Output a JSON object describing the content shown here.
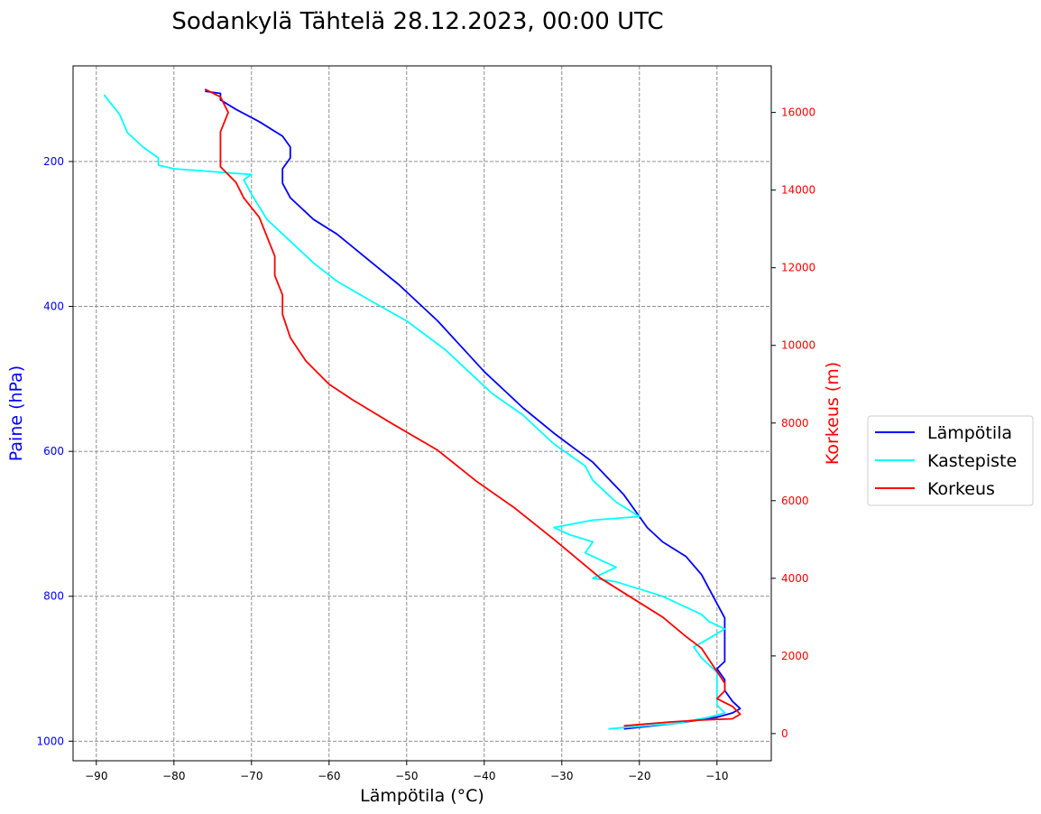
{
  "chart_data": {
    "type": "line",
    "title": "Sodankylä Tähtelä 28.12.2023, 00:00 UTC",
    "xlabel": "Lämpötila (°C)",
    "ylabel_left": "Paine (hPa)",
    "ylabel_right": "Korkeus (m)",
    "xlim": [
      -93,
      -3
    ],
    "ylim_left": [
      1027,
      68
    ],
    "ylim_right": [
      -700,
      17200
    ],
    "x_ticks": [
      "−90",
      "−80",
      "−70",
      "−60",
      "−50",
      "−40",
      "−30",
      "−20",
      "−10"
    ],
    "left_ticks": [
      "200",
      "400",
      "600",
      "800",
      "1000"
    ],
    "right_ticks": [
      "0",
      "2000",
      "4000",
      "6000",
      "8000",
      "10000",
      "12000",
      "14000",
      "16000"
    ],
    "grid": true,
    "legend_position": "outside-right",
    "colors": {
      "temperature": "#0000ff",
      "dewpoint": "#00ffff",
      "height": "#ff0000",
      "left_axis": "#0000ff",
      "right_axis": "#ff0000"
    },
    "series": [
      {
        "name": "Lämpötila",
        "axis": "pressure",
        "points": [
          [
            -22,
            983
          ],
          [
            -15,
            975
          ],
          [
            -10,
            967
          ],
          [
            -8,
            961
          ],
          [
            -7,
            955
          ],
          [
            -8,
            945
          ],
          [
            -9,
            930
          ],
          [
            -9,
            915
          ],
          [
            -10,
            900
          ],
          [
            -9,
            890
          ],
          [
            -9,
            875
          ],
          [
            -9,
            850
          ],
          [
            -9,
            830
          ],
          [
            -10,
            810
          ],
          [
            -11,
            790
          ],
          [
            -12,
            770
          ],
          [
            -14,
            745
          ],
          [
            -17,
            725
          ],
          [
            -19,
            705
          ],
          [
            -20,
            690
          ],
          [
            -22,
            660
          ],
          [
            -26,
            615
          ],
          [
            -31,
            575
          ],
          [
            -35,
            540
          ],
          [
            -37,
            520
          ],
          [
            -40,
            490
          ],
          [
            -43,
            455
          ],
          [
            -46,
            420
          ],
          [
            -51,
            370
          ],
          [
            -55,
            335
          ],
          [
            -59,
            300
          ],
          [
            -62,
            280
          ],
          [
            -65,
            250
          ],
          [
            -66,
            230
          ],
          [
            -66,
            210
          ],
          [
            -65,
            195
          ],
          [
            -65,
            180
          ],
          [
            -66,
            165
          ],
          [
            -69,
            145
          ],
          [
            -72,
            128
          ],
          [
            -74,
            115
          ],
          [
            -74,
            106
          ],
          [
            -76,
            103
          ]
        ]
      },
      {
        "name": "Kastepiste",
        "axis": "pressure",
        "points": [
          [
            -24,
            983
          ],
          [
            -15,
            975
          ],
          [
            -11,
            967
          ],
          [
            -9,
            961
          ],
          [
            -10,
            950
          ],
          [
            -10,
            935
          ],
          [
            -10,
            920
          ],
          [
            -10,
            905
          ],
          [
            -11,
            895
          ],
          [
            -12,
            885
          ],
          [
            -13,
            870
          ],
          [
            -11,
            858
          ],
          [
            -9,
            845
          ],
          [
            -11,
            835
          ],
          [
            -12,
            825
          ],
          [
            -14,
            815
          ],
          [
            -16,
            805
          ],
          [
            -17,
            800
          ],
          [
            -20,
            790
          ],
          [
            -23,
            780
          ],
          [
            -26,
            775
          ],
          [
            -23,
            760
          ],
          [
            -27,
            740
          ],
          [
            -26,
            725
          ],
          [
            -29,
            715
          ],
          [
            -31,
            705
          ],
          [
            -26,
            695
          ],
          [
            -20,
            690
          ],
          [
            -23,
            670
          ],
          [
            -26,
            640
          ],
          [
            -27,
            620
          ],
          [
            -31,
            590
          ],
          [
            -33,
            570
          ],
          [
            -35,
            550
          ],
          [
            -39,
            520
          ],
          [
            -42,
            490
          ],
          [
            -45,
            460
          ],
          [
            -50,
            420
          ],
          [
            -55,
            390
          ],
          [
            -59,
            365
          ],
          [
            -62,
            340
          ],
          [
            -65,
            310
          ],
          [
            -68,
            280
          ],
          [
            -70,
            245
          ],
          [
            -71,
            225
          ],
          [
            -70,
            218
          ],
          [
            -80,
            210
          ],
          [
            -82,
            205
          ],
          [
            -82,
            195
          ],
          [
            -84,
            180
          ],
          [
            -86,
            160
          ],
          [
            -87,
            135
          ],
          [
            -89,
            108
          ]
        ]
      },
      {
        "name": "Korkeus",
        "axis": "height",
        "points": [
          [
            -22,
            200
          ],
          [
            -16,
            300
          ],
          [
            -12,
            350
          ],
          [
            -8,
            380
          ],
          [
            -7,
            500
          ],
          [
            -8,
            700
          ],
          [
            -10,
            900
          ],
          [
            -9,
            1100
          ],
          [
            -9,
            1300
          ],
          [
            -10,
            1600
          ],
          [
            -11,
            1900
          ],
          [
            -12,
            2200
          ],
          [
            -14,
            2500
          ],
          [
            -17,
            3000
          ],
          [
            -21,
            3500
          ],
          [
            -25,
            4000
          ],
          [
            -28,
            4500
          ],
          [
            -31,
            5000
          ],
          [
            -36,
            5800
          ],
          [
            -41,
            6500
          ],
          [
            -46,
            7300
          ],
          [
            -52,
            8000
          ],
          [
            -57,
            8600
          ],
          [
            -60,
            9000
          ],
          [
            -63,
            9600
          ],
          [
            -65,
            10200
          ],
          [
            -66,
            10800
          ],
          [
            -66,
            11300
          ],
          [
            -67,
            11800
          ],
          [
            -67,
            12300
          ],
          [
            -68,
            12800
          ],
          [
            -69,
            13300
          ],
          [
            -71,
            13800
          ],
          [
            -72,
            14200
          ],
          [
            -74,
            14600
          ],
          [
            -74,
            15000
          ],
          [
            -74,
            15500
          ],
          [
            -73,
            16000
          ],
          [
            -74,
            16400
          ],
          [
            -76,
            16600
          ]
        ]
      }
    ]
  }
}
